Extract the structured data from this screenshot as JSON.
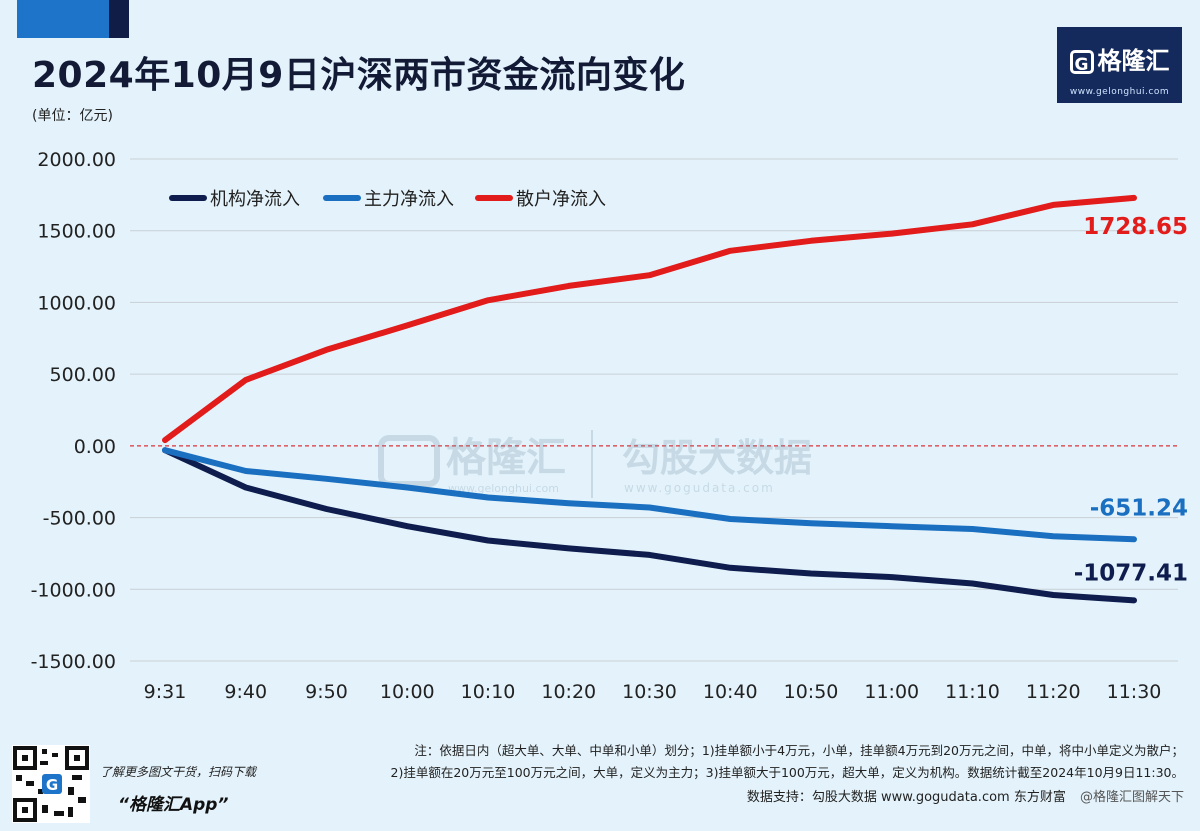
{
  "header": {
    "title": "2024年10月9日沪深两市资金流向变化",
    "unit": "(单位：亿元)"
  },
  "logo": {
    "brand": "格隆汇",
    "url": "www.gelonghui.com"
  },
  "watermark": {
    "left": "格隆汇",
    "left_url": "www.gelonghui.com",
    "right": "勾股大数据",
    "right_url": "www.gogudata.com"
  },
  "chart_data": {
    "type": "line",
    "title": "2024年10月9日沪深两市资金流向变化",
    "ylabel": "(单位：亿元)",
    "xlabel": "",
    "ylim": [
      -1500,
      2000
    ],
    "yticks": [
      "2000.00",
      "1500.00",
      "1000.00",
      "500.00",
      "0.00",
      "-500.00",
      "-1000.00",
      "-1500.00"
    ],
    "ytick_values": [
      2000,
      1500,
      1000,
      500,
      0,
      -500,
      -1000,
      -1500
    ],
    "categories": [
      "9:31",
      "9:40",
      "9:50",
      "10:00",
      "10:10",
      "10:20",
      "10:30",
      "10:40",
      "10:50",
      "11:00",
      "11:10",
      "11:20",
      "11:30"
    ],
    "grid": true,
    "legend_position": "top-left",
    "series": [
      {
        "name": "机构净流入",
        "color": "#0f1d4e",
        "values": [
          -30,
          -290,
          -440,
          -560,
          -660,
          -715,
          -760,
          -850,
          -890,
          -915,
          -960,
          -1040,
          -1077.41
        ],
        "end_label": "-1077.41"
      },
      {
        "name": "主力净流入",
        "color": "#1a6fc0",
        "values": [
          -30,
          -175,
          -230,
          -290,
          -360,
          -400,
          -430,
          -510,
          -540,
          -560,
          -580,
          -630,
          -651.24
        ],
        "end_label": "-651.24"
      },
      {
        "name": "散户净流入",
        "color": "#e21b1b",
        "values": [
          40,
          460,
          670,
          840,
          1015,
          1115,
          1190,
          1360,
          1430,
          1480,
          1545,
          1680,
          1728.65
        ],
        "end_label": "1728.65"
      }
    ]
  },
  "footer": {
    "qr_caption": "了解更多图文干货，扫码下载",
    "app_name": "“格隆汇App”",
    "note_line1": "注：依据日内（超大单、大单、中单和小单）划分；1)挂单额小于4万元，小单，挂单额4万元到20万元之间，中单，将中小单定义为散户；",
    "note_line2": "2)挂单额在20万元至100万元之间，大单，定义为主力；3)挂单额大于100万元，超大单，定义为机构。数据统计截至2024年10月9日11:30。",
    "source": "数据支持：勾股大数据 www.gogudata.com  东方财富",
    "weibo": "@格隆汇图解天下"
  }
}
